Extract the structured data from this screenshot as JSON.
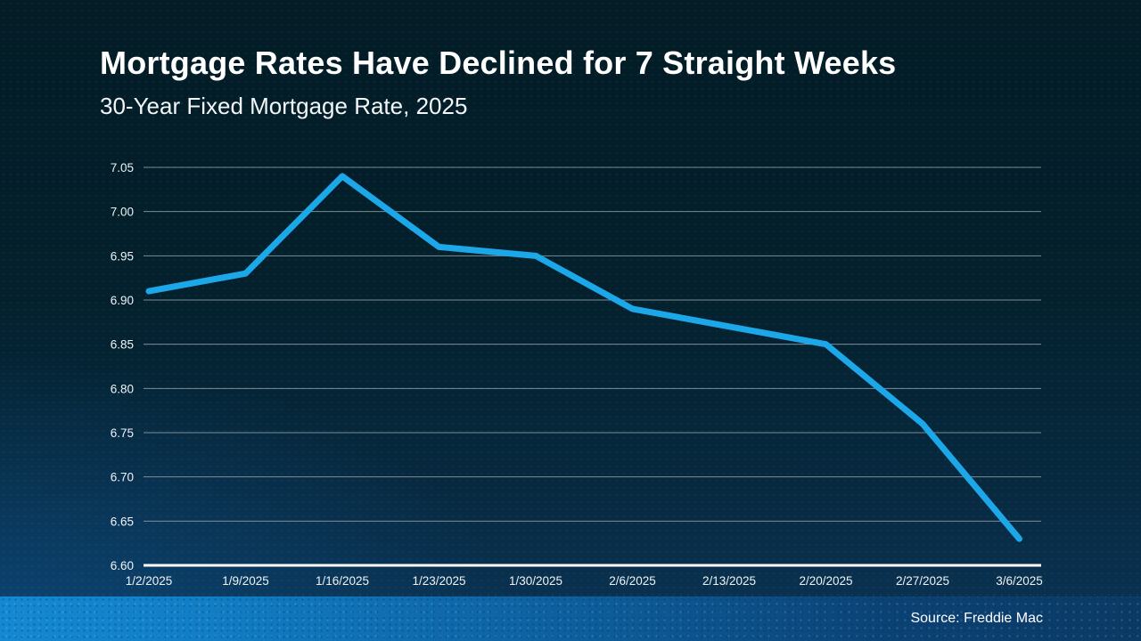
{
  "slide": {
    "title": "Mortgage Rates Have Declined for 7 Straight Weeks",
    "subtitle": "30-Year Fixed Mortgage Rate, 2025",
    "source": "Source: Freddie Mac"
  },
  "colors": {
    "line": "#1ba7e8",
    "gridline": "#9aa7ad",
    "axis": "#ffffff",
    "tick_text": "#eef3f5",
    "band_left": "#1489d3",
    "band_right": "#0b3a64",
    "background_top": "#031c26",
    "background_bottom": "#0a3456"
  },
  "chart_data": {
    "type": "line",
    "title": "Mortgage Rates Have Declined for 7 Straight Weeks",
    "subtitle": "30-Year Fixed Mortgage Rate, 2025",
    "categories": [
      "1/2/2025",
      "1/9/2025",
      "1/16/2025",
      "1/23/2025",
      "1/30/2025",
      "2/6/2025",
      "2/13/2025",
      "2/20/2025",
      "2/27/2025",
      "3/6/2025"
    ],
    "series": [
      {
        "name": "30-Year Fixed Mortgage Rate",
        "values": [
          6.91,
          6.93,
          7.04,
          6.96,
          6.95,
          6.89,
          6.87,
          6.85,
          6.76,
          6.63
        ]
      }
    ],
    "xlabel": "",
    "ylabel": "",
    "ylim": [
      6.6,
      7.05
    ],
    "ytick_labels": [
      "6.60",
      "6.65",
      "6.70",
      "6.75",
      "6.80",
      "6.85",
      "6.90",
      "6.95",
      "7.00",
      "7.05"
    ],
    "grid": true,
    "legend_position": "none",
    "annotation": "Source: Freddie Mac"
  }
}
